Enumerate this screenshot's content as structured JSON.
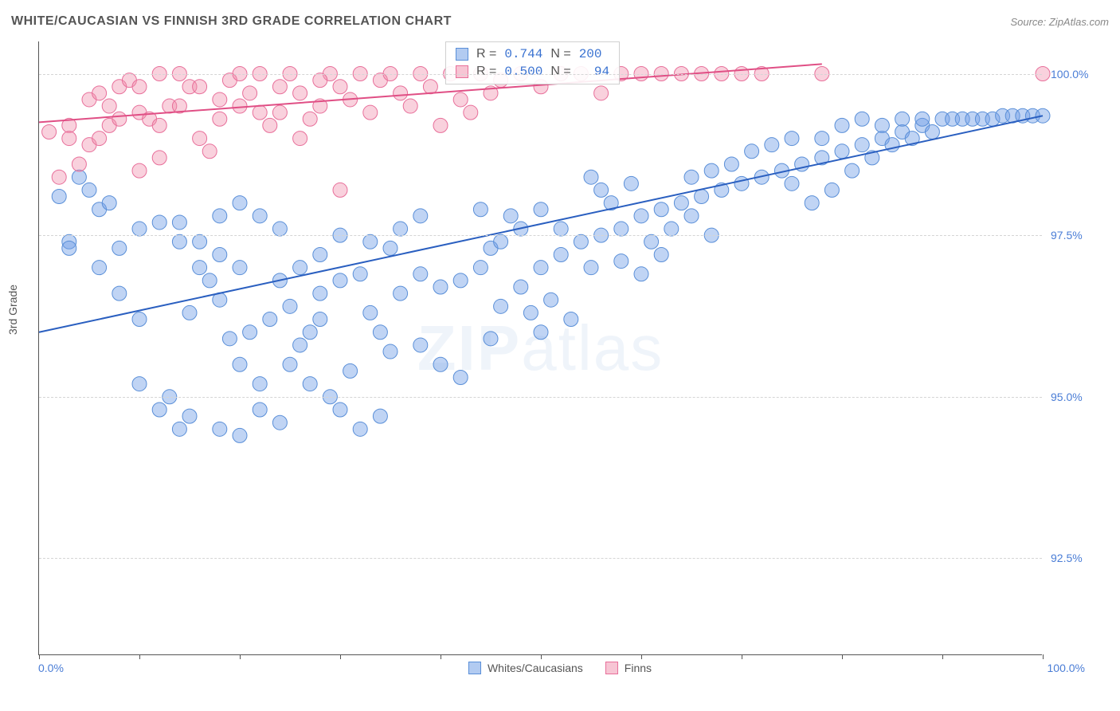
{
  "header": {
    "title": "WHITE/CAUCASIAN VS FINNISH 3RD GRADE CORRELATION CHART",
    "source_label": "Source: ZipAtlas.com"
  },
  "watermark": {
    "part1": "ZIP",
    "part2": "atlas"
  },
  "chart": {
    "type": "scatter",
    "ylabel": "3rd Grade",
    "xlim": [
      0,
      100
    ],
    "ylim": [
      91.0,
      100.5
    ],
    "xticks": [
      0,
      10,
      20,
      30,
      40,
      50,
      60,
      70,
      80,
      90,
      100
    ],
    "yticks": [
      {
        "v": 92.5,
        "label": "92.5%"
      },
      {
        "v": 95.0,
        "label": "95.0%"
      },
      {
        "v": 97.5,
        "label": "97.5%"
      },
      {
        "v": 100.0,
        "label": "100.0%"
      }
    ],
    "xlabel_min": "0.0%",
    "xlabel_max": "100.0%",
    "background_color": "#ffffff",
    "grid_color": "#d5d5d5",
    "series": [
      {
        "name": "Whites/Caucasians",
        "color_fill": "rgba(115,160,230,0.45)",
        "color_stroke": "#5a8fd8",
        "marker_radius": 9,
        "line_color": "#2a5fc0",
        "line_width": 2,
        "trend": {
          "x1": 0,
          "y1": 96.0,
          "x2": 100,
          "y2": 99.35
        },
        "R": "0.744",
        "N": "200",
        "points": [
          [
            2,
            98.1
          ],
          [
            3,
            97.4
          ],
          [
            5,
            98.2
          ],
          [
            6,
            97.9
          ],
          [
            7,
            98.0
          ],
          [
            3,
            97.3
          ],
          [
            4,
            98.4
          ],
          [
            8,
            97.3
          ],
          [
            10,
            97.6
          ],
          [
            12,
            97.7
          ],
          [
            14,
            97.7
          ],
          [
            16,
            97.4
          ],
          [
            18,
            97.2
          ],
          [
            20,
            97.0
          ],
          [
            15,
            96.3
          ],
          [
            17,
            96.8
          ],
          [
            19,
            95.9
          ],
          [
            21,
            96.0
          ],
          [
            23,
            96.2
          ],
          [
            25,
            96.4
          ],
          [
            10,
            95.2
          ],
          [
            13,
            95.0
          ],
          [
            15,
            94.7
          ],
          [
            18,
            94.5
          ],
          [
            20,
            94.4
          ],
          [
            22,
            94.8
          ],
          [
            24,
            94.6
          ],
          [
            27,
            96.0
          ],
          [
            28,
            96.6
          ],
          [
            30,
            96.8
          ],
          [
            32,
            96.9
          ],
          [
            33,
            96.3
          ],
          [
            34,
            96.0
          ],
          [
            35,
            95.7
          ],
          [
            36,
            96.6
          ],
          [
            38,
            96.9
          ],
          [
            40,
            96.7
          ],
          [
            42,
            96.8
          ],
          [
            44,
            97.0
          ],
          [
            45,
            97.3
          ],
          [
            46,
            96.4
          ],
          [
            28,
            97.2
          ],
          [
            30,
            97.5
          ],
          [
            26,
            97.0
          ],
          [
            35,
            97.3
          ],
          [
            24,
            97.6
          ],
          [
            22,
            97.8
          ],
          [
            20,
            98.0
          ],
          [
            12,
            94.8
          ],
          [
            14,
            94.5
          ],
          [
            25,
            95.5
          ],
          [
            27,
            95.2
          ],
          [
            29,
            95.0
          ],
          [
            31,
            95.4
          ],
          [
            38,
            95.8
          ],
          [
            40,
            95.5
          ],
          [
            42,
            95.3
          ],
          [
            33,
            97.4
          ],
          [
            48,
            96.7
          ],
          [
            50,
            97.0
          ],
          [
            52,
            97.2
          ],
          [
            54,
            97.4
          ],
          [
            56,
            97.5
          ],
          [
            58,
            97.6
          ],
          [
            60,
            97.8
          ],
          [
            47,
            97.8
          ],
          [
            49,
            96.3
          ],
          [
            51,
            96.5
          ],
          [
            53,
            96.2
          ],
          [
            55,
            97.0
          ],
          [
            45,
            95.9
          ],
          [
            48,
            97.6
          ],
          [
            62,
            97.9
          ],
          [
            64,
            98.0
          ],
          [
            66,
            98.1
          ],
          [
            68,
            98.2
          ],
          [
            70,
            98.3
          ],
          [
            72,
            98.4
          ],
          [
            74,
            98.5
          ],
          [
            61,
            97.4
          ],
          [
            63,
            97.6
          ],
          [
            65,
            97.8
          ],
          [
            67,
            97.5
          ],
          [
            69,
            98.6
          ],
          [
            71,
            98.8
          ],
          [
            76,
            98.6
          ],
          [
            78,
            98.7
          ],
          [
            80,
            98.8
          ],
          [
            82,
            98.9
          ],
          [
            84,
            99.0
          ],
          [
            86,
            99.1
          ],
          [
            88,
            99.2
          ],
          [
            75,
            98.3
          ],
          [
            77,
            98.0
          ],
          [
            79,
            98.2
          ],
          [
            81,
            98.5
          ],
          [
            83,
            98.7
          ],
          [
            85,
            98.9
          ],
          [
            90,
            99.3
          ],
          [
            91,
            99.3
          ],
          [
            92,
            99.3
          ],
          [
            93,
            99.3
          ],
          [
            94,
            99.3
          ],
          [
            95,
            99.3
          ],
          [
            96,
            99.35
          ],
          [
            87,
            99.0
          ],
          [
            89,
            99.1
          ],
          [
            97,
            99.35
          ],
          [
            98,
            99.35
          ],
          [
            99,
            99.35
          ],
          [
            100,
            99.35
          ],
          [
            73,
            98.9
          ],
          [
            75,
            99.0
          ],
          [
            65,
            98.4
          ],
          [
            67,
            98.5
          ],
          [
            56,
            98.2
          ],
          [
            58,
            97.1
          ],
          [
            60,
            96.9
          ],
          [
            62,
            97.2
          ],
          [
            50,
            97.9
          ],
          [
            52,
            97.6
          ],
          [
            6,
            97.0
          ],
          [
            8,
            96.6
          ],
          [
            10,
            96.2
          ],
          [
            30,
            94.8
          ],
          [
            32,
            94.5
          ],
          [
            34,
            94.7
          ],
          [
            36,
            97.6
          ],
          [
            38,
            97.8
          ],
          [
            14,
            97.4
          ],
          [
            16,
            97.0
          ],
          [
            18,
            96.5
          ],
          [
            44,
            97.9
          ],
          [
            46,
            97.4
          ],
          [
            55,
            98.4
          ],
          [
            57,
            98.0
          ],
          [
            59,
            98.3
          ],
          [
            50,
            96.0
          ],
          [
            24,
            96.8
          ],
          [
            26,
            95.8
          ],
          [
            28,
            96.2
          ],
          [
            18,
            97.8
          ],
          [
            20,
            95.5
          ],
          [
            22,
            95.2
          ],
          [
            78,
            99.0
          ],
          [
            80,
            99.2
          ],
          [
            82,
            99.3
          ],
          [
            84,
            99.2
          ],
          [
            86,
            99.3
          ],
          [
            88,
            99.3
          ]
        ]
      },
      {
        "name": "Finns",
        "color_fill": "rgba(240,140,170,0.40)",
        "color_stroke": "#e86f9a",
        "marker_radius": 9,
        "line_color": "#e04f85",
        "line_width": 2,
        "trend": {
          "x1": 0,
          "y1": 99.25,
          "x2": 78,
          "y2": 100.15
        },
        "R": "0.500",
        "N": "94",
        "points": [
          [
            1,
            99.1
          ],
          [
            3,
            99.2
          ],
          [
            5,
            99.6
          ],
          [
            6,
            99.7
          ],
          [
            7,
            99.5
          ],
          [
            8,
            99.8
          ],
          [
            9,
            99.9
          ],
          [
            10,
            99.4
          ],
          [
            11,
            99.3
          ],
          [
            12,
            99.2
          ],
          [
            13,
            99.5
          ],
          [
            14,
            100.0
          ],
          [
            15,
            99.8
          ],
          [
            16,
            99.0
          ],
          [
            17,
            98.8
          ],
          [
            18,
            99.6
          ],
          [
            19,
            99.9
          ],
          [
            20,
            100.0
          ],
          [
            21,
            99.7
          ],
          [
            22,
            99.4
          ],
          [
            23,
            99.2
          ],
          [
            24,
            99.8
          ],
          [
            25,
            100.0
          ],
          [
            26,
            99.0
          ],
          [
            27,
            99.3
          ],
          [
            28,
            99.5
          ],
          [
            29,
            100.0
          ],
          [
            30,
            99.8
          ],
          [
            31,
            99.6
          ],
          [
            32,
            100.0
          ],
          [
            33,
            99.4
          ],
          [
            34,
            99.9
          ],
          [
            35,
            100.0
          ],
          [
            36,
            99.7
          ],
          [
            37,
            99.5
          ],
          [
            38,
            100.0
          ],
          [
            39,
            99.8
          ],
          [
            40,
            99.2
          ],
          [
            41,
            100.0
          ],
          [
            42,
            99.6
          ],
          [
            43,
            99.4
          ],
          [
            44,
            100.0
          ],
          [
            45,
            99.7
          ],
          [
            3,
            99.0
          ],
          [
            5,
            98.9
          ],
          [
            7,
            99.2
          ],
          [
            2,
            98.4
          ],
          [
            4,
            98.6
          ],
          [
            46,
            99.9
          ],
          [
            48,
            100.0
          ],
          [
            50,
            99.8
          ],
          [
            52,
            100.0
          ],
          [
            54,
            100.0
          ],
          [
            56,
            99.7
          ],
          [
            58,
            100.0
          ],
          [
            60,
            100.0
          ],
          [
            62,
            100.0
          ],
          [
            64,
            100.0
          ],
          [
            66,
            100.0
          ],
          [
            68,
            100.0
          ],
          [
            70,
            100.0
          ],
          [
            72,
            100.0
          ],
          [
            78,
            100.0
          ],
          [
            30,
            98.2
          ],
          [
            10,
            99.8
          ],
          [
            12,
            100.0
          ],
          [
            14,
            99.5
          ],
          [
            16,
            99.8
          ],
          [
            18,
            99.3
          ],
          [
            20,
            99.5
          ],
          [
            22,
            100.0
          ],
          [
            24,
            99.4
          ],
          [
            100,
            100.0
          ],
          [
            26,
            99.7
          ],
          [
            28,
            99.9
          ],
          [
            6,
            99.0
          ],
          [
            8,
            99.3
          ],
          [
            10,
            98.5
          ],
          [
            12,
            98.7
          ]
        ]
      }
    ],
    "legend": [
      {
        "label": "Whites/Caucasians",
        "fill": "rgba(115,160,230,0.55)",
        "stroke": "#5a8fd8"
      },
      {
        "label": "Finns",
        "fill": "rgba(240,140,170,0.50)",
        "stroke": "#e86f9a"
      }
    ],
    "stats_box": {
      "rows": [
        {
          "swatch_fill": "rgba(115,160,230,0.55)",
          "swatch_stroke": "#5a8fd8",
          "R": "0.744",
          "N": "200"
        },
        {
          "swatch_fill": "rgba(240,140,170,0.50)",
          "swatch_stroke": "#e86f9a",
          "R": "0.500",
          "N": "  94"
        }
      ]
    }
  }
}
